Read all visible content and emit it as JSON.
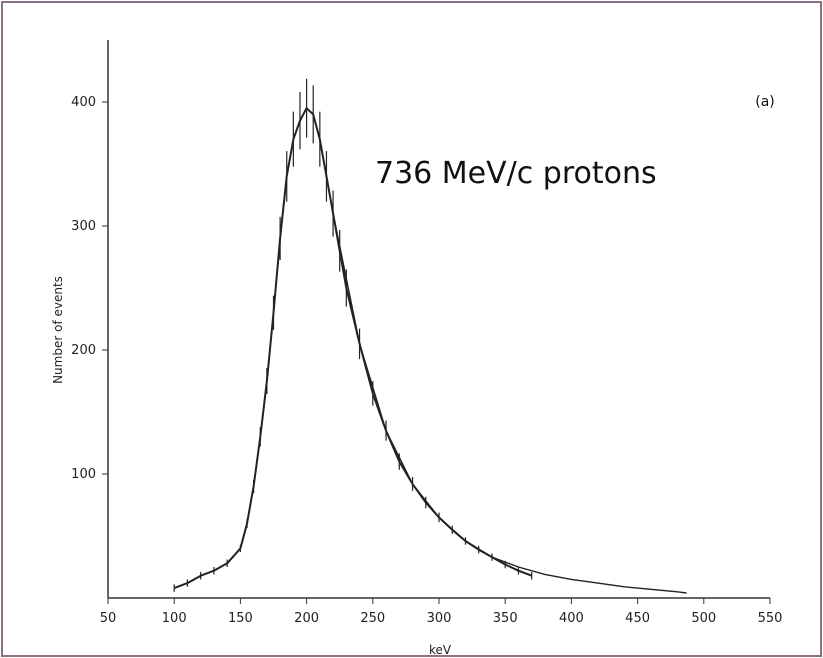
{
  "chart_data": {
    "type": "line",
    "title": "",
    "xlabel": "keV",
    "ylabel": "Number of events",
    "xlim": [
      50,
      550
    ],
    "ylim": [
      0,
      450
    ],
    "x_ticks": [
      50,
      100,
      150,
      200,
      250,
      300,
      350,
      400,
      450,
      500,
      550
    ],
    "y_ticks": [
      100,
      200,
      300,
      400
    ],
    "panel_label": "(a)",
    "annotation": "736 MeV/c  protons",
    "grid": false,
    "legend": "none",
    "series": [
      {
        "style": "scatter-noisy",
        "x": [
          100,
          110,
          120,
          130,
          140,
          150,
          155,
          160,
          165,
          170,
          175,
          180,
          185,
          190,
          195,
          200,
          205,
          210,
          215,
          220,
          225,
          230,
          240,
          250,
          260,
          270,
          280,
          290,
          300,
          310,
          320,
          330,
          340,
          350,
          360,
          370
        ],
        "y": [
          8,
          12,
          18,
          22,
          28,
          40,
          60,
          90,
          130,
          175,
          230,
          290,
          340,
          370,
          385,
          395,
          390,
          370,
          340,
          310,
          280,
          250,
          205,
          165,
          135,
          110,
          92,
          77,
          65,
          55,
          46,
          39,
          33,
          27,
          22,
          18
        ]
      },
      {
        "style": "smooth-fit",
        "x": [
          220,
          240,
          260,
          280,
          300,
          320,
          340,
          360,
          380,
          400,
          420,
          440,
          460,
          480,
          487
        ],
        "y": [
          310,
          205,
          135,
          92,
          65,
          46,
          33,
          25,
          19,
          15,
          12,
          9,
          7,
          5,
          4
        ]
      }
    ],
    "colors": {
      "data": "#222222",
      "axis": "#333333",
      "border": "#8a6f85"
    }
  }
}
